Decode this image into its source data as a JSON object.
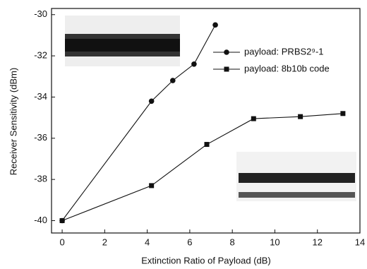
{
  "chart_data": {
    "type": "line",
    "x_label": "Extinction Ratio of Payload (dB)",
    "y_label": "Receiver Sensitivity (dBm)",
    "xlim": [
      -0.5,
      14
    ],
    "ylim": [
      -40.6,
      -29.7
    ],
    "xticks": [
      0,
      2,
      4,
      6,
      8,
      10,
      12,
      14
    ],
    "yticks": [
      -40,
      -38,
      -36,
      -34,
      -32,
      -30
    ],
    "legend": "upper right",
    "series": [
      {
        "name": "payload: PRBS2⁹-1",
        "color": "#111111",
        "marker": "circle",
        "x": [
          0,
          4.2,
          5.2,
          6.2,
          7.2
        ],
        "values": [
          -40,
          -34.2,
          -33.2,
          -32.4,
          -30.5
        ]
      },
      {
        "name": "payload: 8b10b code",
        "color": "#111111",
        "marker": "square",
        "x": [
          0,
          4.2,
          6.8,
          9,
          11.2,
          13.2
        ],
        "values": [
          -40,
          -38.3,
          -36.3,
          -35.05,
          -34.95,
          -34.8
        ]
      }
    ]
  }
}
